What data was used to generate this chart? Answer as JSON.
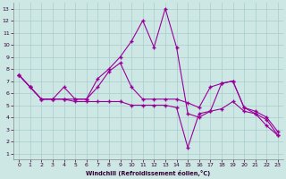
{
  "xlabel": "Windchill (Refroidissement éolien,°C)",
  "background_color": "#cde8e4",
  "line_color": "#990099",
  "grid_color": "#aacccc",
  "xlim": [
    -0.5,
    23.5
  ],
  "ylim": [
    0.5,
    13.5
  ],
  "xticks": [
    0,
    1,
    2,
    3,
    4,
    5,
    6,
    7,
    8,
    9,
    10,
    11,
    12,
    13,
    14,
    15,
    16,
    17,
    18,
    19,
    20,
    21,
    22,
    23
  ],
  "yticks": [
    1,
    2,
    3,
    4,
    5,
    6,
    7,
    8,
    9,
    10,
    11,
    12,
    13
  ],
  "series1_x": [
    0,
    1,
    2,
    3,
    4,
    5,
    6,
    7,
    8,
    9,
    10,
    11,
    12,
    13,
    14,
    15,
    16,
    17,
    18,
    19,
    20,
    21,
    22,
    23
  ],
  "series1_y": [
    7.5,
    6.5,
    5.5,
    5.5,
    6.5,
    5.5,
    5.5,
    7.2,
    8.0,
    9.0,
    10.3,
    12.0,
    9.8,
    13.0,
    9.8,
    4.3,
    4.0,
    4.5,
    6.8,
    7.0,
    4.8,
    4.3,
    3.3,
    2.5
  ],
  "series2_x": [
    0,
    1,
    2,
    3,
    4,
    5,
    6,
    7,
    8,
    9,
    10,
    11,
    12,
    13,
    14,
    15,
    16,
    17,
    18,
    19,
    20,
    21,
    22,
    23
  ],
  "series2_y": [
    7.5,
    6.5,
    5.5,
    5.5,
    5.5,
    5.5,
    5.5,
    6.5,
    7.8,
    8.5,
    6.5,
    5.5,
    5.5,
    5.5,
    5.5,
    5.2,
    4.8,
    6.5,
    6.8,
    7.0,
    4.8,
    4.5,
    4.0,
    2.8
  ],
  "series3_x": [
    0,
    1,
    2,
    3,
    4,
    5,
    6,
    7,
    8,
    9,
    10,
    11,
    12,
    13,
    14,
    15,
    16,
    17,
    18,
    19,
    20,
    21,
    22,
    23
  ],
  "series3_y": [
    7.5,
    6.5,
    5.5,
    5.5,
    5.5,
    5.3,
    5.3,
    5.3,
    5.3,
    5.3,
    5.0,
    5.0,
    5.0,
    5.0,
    4.8,
    1.5,
    4.3,
    4.5,
    4.7,
    5.3,
    4.5,
    4.3,
    3.8,
    2.5
  ]
}
